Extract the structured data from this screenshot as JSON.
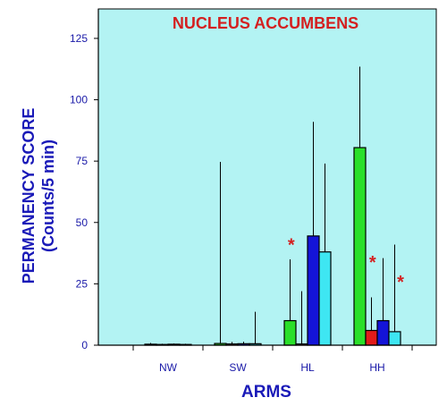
{
  "chart_data": {
    "type": "bar",
    "title": "NUCLEUS ACCUMBENS",
    "xlabel": "ARMS",
    "ylabel_line1": "PERMANENCY SCORE",
    "ylabel_line2": "(Counts/5 min)",
    "categories": [
      "NW",
      "SW",
      "HL",
      "HH"
    ],
    "yticks": [
      "0",
      "25",
      "50",
      "75",
      "100",
      "125"
    ],
    "ylim": [
      0,
      137
    ],
    "plot_background": "#b3f3f3",
    "series": [
      {
        "color": "#2adf2a",
        "values": [
          0.4,
          0.7,
          10,
          80.5
        ],
        "errors": [
          0.5,
          74,
          25,
          33
        ]
      },
      {
        "color": "#e21b1b",
        "values": [
          0.3,
          0.5,
          0.5,
          6
        ],
        "errors": [
          0.3,
          0.8,
          21.5,
          13.5
        ]
      },
      {
        "color": "#1414d8",
        "values": [
          0.4,
          0.6,
          44.5,
          10
        ],
        "errors": [
          0.3,
          0.8,
          46.5,
          25.5
        ]
      },
      {
        "color": "#3ee6f2",
        "values": [
          0.3,
          0.6,
          38,
          5.5
        ],
        "errors": [
          0.3,
          13,
          36,
          35.5
        ]
      }
    ],
    "annotations": [
      {
        "text": "*",
        "category": "HL",
        "y": 42,
        "offset": -0.35
      },
      {
        "text": "*",
        "category": "HH",
        "y": 35,
        "offset": -0.1
      },
      {
        "text": "*",
        "category": "HH",
        "y": 27,
        "offset": 0.5
      }
    ],
    "grid": false,
    "legend": "none"
  }
}
